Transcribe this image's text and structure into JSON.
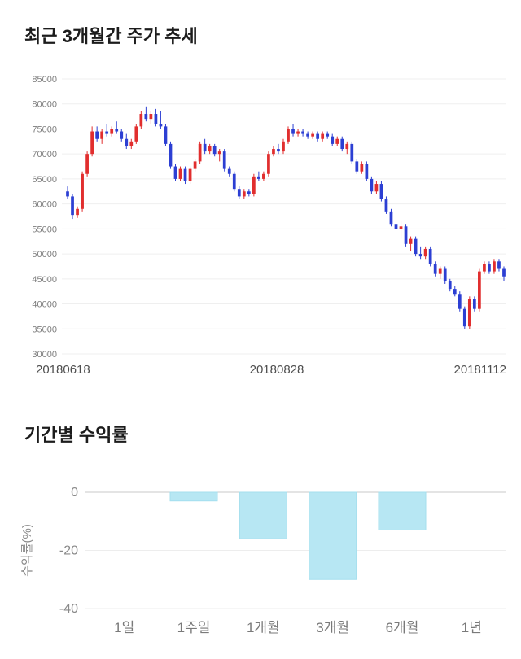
{
  "page": {
    "background": "#ffffff"
  },
  "price_section": {
    "title": "최근 3개월간 주가 추세"
  },
  "returns_section": {
    "title": "기간별 수익률"
  },
  "chart_data": [
    {
      "type": "candlestick",
      "title": "최근 3개월간 주가 추세",
      "ylim": [
        30000,
        85000
      ],
      "y_ticks": [
        85000,
        80000,
        75000,
        70000,
        65000,
        60000,
        55000,
        50000,
        45000,
        40000,
        35000,
        30000
      ],
      "x_tick_labels": [
        "20180618",
        "20180828",
        "20181112"
      ],
      "grid": true,
      "colors": {
        "up": "#e12e2e",
        "down": "#2c3fd3",
        "grid": "#efefef",
        "axis_text": "#7d7d7d",
        "date_text": "#4f4f4f"
      },
      "candles_format": [
        "open",
        "high",
        "low",
        "close"
      ],
      "candles": [
        [
          62500,
          63500,
          61000,
          61500
        ],
        [
          61500,
          62000,
          57000,
          57800
        ],
        [
          57800,
          59500,
          57200,
          59000
        ],
        [
          59000,
          66500,
          58500,
          66000
        ],
        [
          66000,
          70500,
          65500,
          70000
        ],
        [
          70000,
          75500,
          69500,
          74500
        ],
        [
          74500,
          75500,
          72500,
          73000
        ],
        [
          73000,
          75000,
          72000,
          74500
        ],
        [
          74500,
          76000,
          73500,
          74000
        ],
        [
          74000,
          75500,
          73500,
          75000
        ],
        [
          75000,
          76500,
          74000,
          74500
        ],
        [
          74500,
          75000,
          72500,
          73000
        ],
        [
          73000,
          74000,
          71000,
          71500
        ],
        [
          71500,
          73000,
          71000,
          72500
        ],
        [
          72500,
          76000,
          72000,
          75500
        ],
        [
          75500,
          78500,
          75000,
          78000
        ],
        [
          78000,
          79500,
          76500,
          77000
        ],
        [
          77000,
          78500,
          76000,
          78000
        ],
        [
          78000,
          79000,
          75500,
          76000
        ],
        [
          76000,
          78500,
          75000,
          75500
        ],
        [
          75500,
          76000,
          71500,
          72000
        ],
        [
          72000,
          72500,
          67000,
          67500
        ],
        [
          67500,
          68000,
          64500,
          65000
        ],
        [
          65000,
          67500,
          64500,
          67000
        ],
        [
          67000,
          67500,
          64000,
          64500
        ],
        [
          64500,
          67500,
          64000,
          67000
        ],
        [
          67000,
          69000,
          66500,
          68500
        ],
        [
          68500,
          72500,
          68000,
          72000
        ],
        [
          72000,
          73000,
          70000,
          70500
        ],
        [
          70500,
          72000,
          70000,
          71500
        ],
        [
          71500,
          72000,
          69500,
          70000
        ],
        [
          70000,
          71000,
          68500,
          70500
        ],
        [
          70500,
          71000,
          66500,
          67000
        ],
        [
          67000,
          67500,
          65500,
          66000
        ],
        [
          66000,
          66500,
          62500,
          63000
        ],
        [
          63000,
          63500,
          61000,
          61500
        ],
        [
          61500,
          63000,
          61000,
          62500
        ],
        [
          62500,
          63000,
          61500,
          62000
        ],
        [
          62000,
          66000,
          61500,
          65500
        ],
        [
          65500,
          66500,
          64500,
          65000
        ],
        [
          65000,
          66500,
          64500,
          66000
        ],
        [
          66000,
          70500,
          65500,
          70000
        ],
        [
          70000,
          71500,
          69500,
          71000
        ],
        [
          71000,
          72000,
          70000,
          70500
        ],
        [
          70500,
          73000,
          70000,
          72500
        ],
        [
          72500,
          75500,
          72000,
          75000
        ],
        [
          75000,
          76000,
          73500,
          74000
        ],
        [
          74000,
          75000,
          73500,
          74500
        ],
        [
          74500,
          75000,
          73500,
          74000
        ],
        [
          74000,
          74500,
          73000,
          73500
        ],
        [
          73500,
          74500,
          73000,
          74000
        ],
        [
          74000,
          74500,
          72500,
          73000
        ],
        [
          73000,
          74500,
          72500,
          74000
        ],
        [
          74000,
          74500,
          73000,
          73500
        ],
        [
          73500,
          74000,
          71500,
          72000
        ],
        [
          72000,
          73500,
          71500,
          73000
        ],
        [
          73000,
          73500,
          70500,
          71000
        ],
        [
          71000,
          72500,
          70000,
          72000
        ],
        [
          72000,
          72500,
          68000,
          68500
        ],
        [
          68500,
          69000,
          66000,
          66500
        ],
        [
          66500,
          68500,
          66000,
          68000
        ],
        [
          68000,
          68500,
          64500,
          65000
        ],
        [
          65000,
          65500,
          62000,
          62500
        ],
        [
          62500,
          64500,
          62000,
          64000
        ],
        [
          64000,
          64500,
          60500,
          61000
        ],
        [
          61000,
          61500,
          58000,
          58500
        ],
        [
          58500,
          59000,
          55500,
          56000
        ],
        [
          56000,
          57500,
          54500,
          55000
        ],
        [
          55000,
          56500,
          53000,
          55500
        ],
        [
          55500,
          56000,
          51500,
          52000
        ],
        [
          52000,
          53500,
          50500,
          53000
        ],
        [
          53000,
          53500,
          49500,
          50000
        ],
        [
          50000,
          51500,
          49000,
          49500
        ],
        [
          49500,
          51500,
          49000,
          51000
        ],
        [
          51000,
          51500,
          47500,
          48000
        ],
        [
          48000,
          48500,
          45500,
          46000
        ],
        [
          46000,
          47500,
          45000,
          47000
        ],
        [
          47000,
          47500,
          44000,
          44500
        ],
        [
          44500,
          45000,
          42500,
          43000
        ],
        [
          43000,
          43500,
          41500,
          42000
        ],
        [
          42000,
          42500,
          38500,
          39000
        ],
        [
          39000,
          39500,
          35000,
          35500
        ],
        [
          35500,
          41500,
          35000,
          41000
        ],
        [
          41000,
          41500,
          38500,
          39000
        ],
        [
          39000,
          47000,
          38500,
          46500
        ],
        [
          46500,
          48500,
          46000,
          48000
        ],
        [
          48000,
          48500,
          46000,
          46500
        ],
        [
          46500,
          49000,
          46000,
          48500
        ],
        [
          48500,
          49000,
          46500,
          47000
        ],
        [
          47000,
          47500,
          44500,
          45500
        ]
      ]
    },
    {
      "type": "bar",
      "title": "기간별 수익률",
      "ylabel": "수익률(%)",
      "categories": [
        "1일",
        "1주일",
        "1개월",
        "3개월",
        "6개월",
        "1년"
      ],
      "values": [
        0,
        -3,
        -16,
        -30,
        -13,
        0
      ],
      "ylim": [
        -40,
        0
      ],
      "y_ticks": [
        0,
        -20,
        -40
      ],
      "grid": true,
      "legend": "none",
      "colors": {
        "bar_fill": "#b7e7f3",
        "bar_stroke": "#a5dfee",
        "zero_line": "#c8c8c8",
        "grid": "#ededed",
        "axis_text": "#8a8a8a",
        "category_text": "#7a7a7a"
      }
    }
  ]
}
